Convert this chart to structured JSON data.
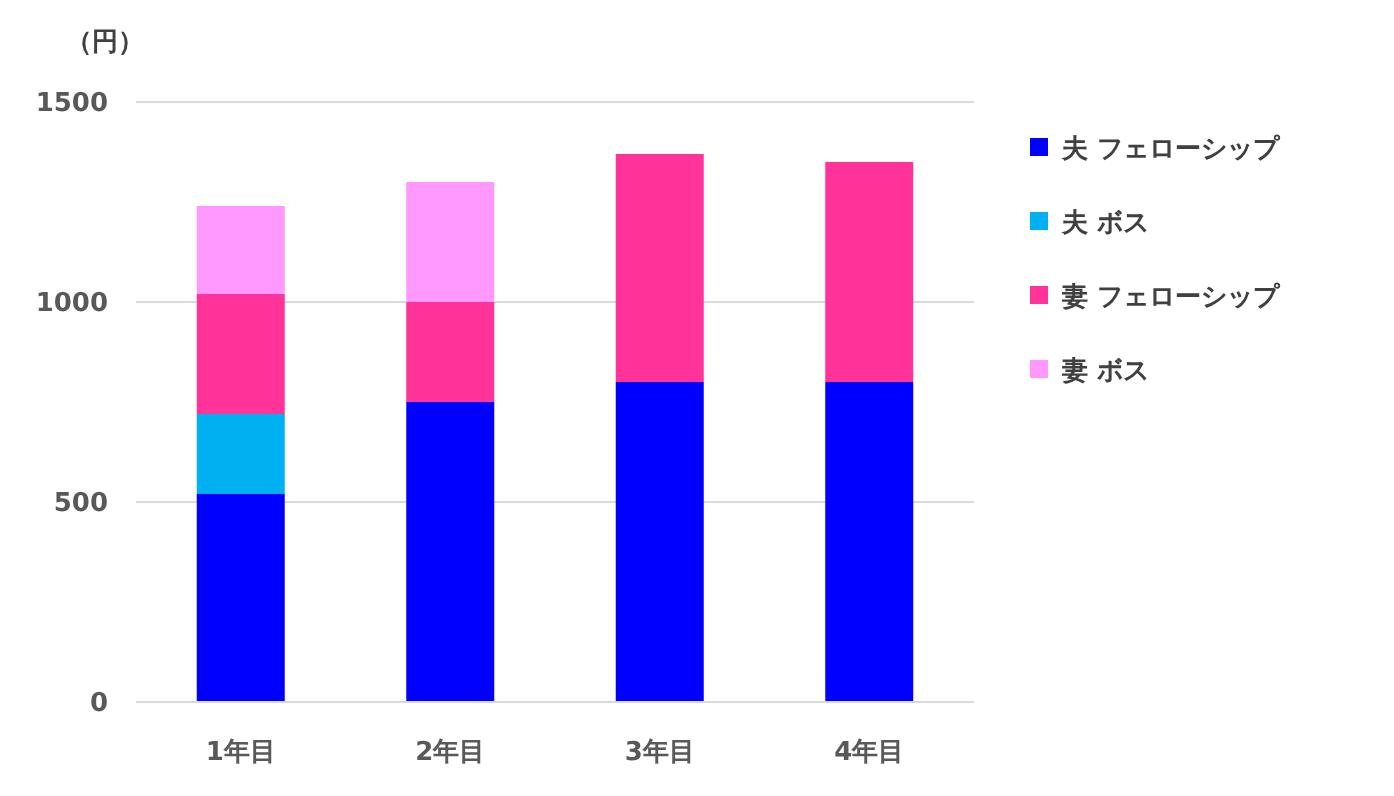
{
  "chart_data": {
    "type": "bar",
    "ylabel": "（円）",
    "categories": [
      "1年目",
      "2年目",
      "3年目",
      "4年目"
    ],
    "stacked": true,
    "series": [
      {
        "name": "夫 フェローシップ",
        "color": "#0000ff",
        "values": [
          520,
          750,
          800,
          800
        ]
      },
      {
        "name": "夫 ボス",
        "color": "#00b0f0",
        "values": [
          200,
          null,
          null,
          null
        ]
      },
      {
        "name": "妻 フェローシップ",
        "color": "#ff3399",
        "values": [
          300,
          250,
          570,
          550
        ]
      },
      {
        "name": "妻 ボス",
        "color": "#ff99ff",
        "values": [
          220,
          300,
          null,
          null
        ]
      }
    ],
    "ylim": [
      0,
      1500
    ],
    "yticks": [
      0,
      500,
      1000,
      1500
    ],
    "grid": "y",
    "legend": "right"
  }
}
